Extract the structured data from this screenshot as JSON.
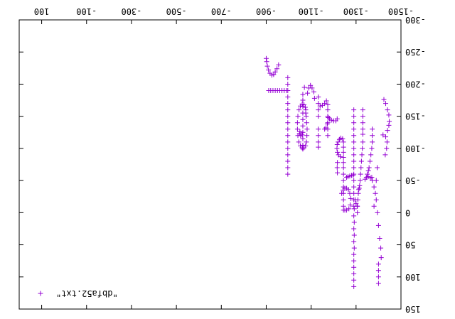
{
  "chart_data": {
    "type": "scatter",
    "title": "",
    "xlabel": "",
    "ylabel": "",
    "xlim": [
      -1500,
      200
    ],
    "ylim": [
      -300,
      150
    ],
    "x_ticks": [
      -1500,
      -1300,
      -1100,
      -900,
      -700,
      -500,
      -300,
      -100,
      100
    ],
    "x_tick_labels": [
      "-1500",
      "-1300",
      "-1100",
      "-900",
      "-700",
      "-500",
      "-300",
      "-100",
      "100"
    ],
    "y_ticks": [
      -300,
      -250,
      -200,
      -150,
      -100,
      -50,
      0,
      50,
      100,
      150
    ],
    "y_tick_labels": [
      "-300",
      "-250",
      "-200",
      "-150",
      "-100",
      "-50",
      "0",
      "50",
      "100",
      "150"
    ],
    "grid": false,
    "legend": "bottom-right",
    "marker": "plus",
    "color": "#9400d3",
    "rendering": "image rotated 180 degrees",
    "series": [
      {
        "name": "\"dbfa52.txt\"",
        "points": [
          [
            -900,
            -240
          ],
          [
            -902,
            -235
          ],
          [
            -905,
            -228
          ],
          [
            -910,
            -222
          ],
          [
            -917,
            -217
          ],
          [
            -925,
            -214
          ],
          [
            -933,
            -215
          ],
          [
            -940,
            -219
          ],
          [
            -948,
            -224
          ],
          [
            -955,
            -230
          ],
          [
            -911,
            -190
          ],
          [
            -920,
            -190
          ],
          [
            -930,
            -190
          ],
          [
            -940,
            -190
          ],
          [
            -950,
            -190
          ],
          [
            -960,
            -190
          ],
          [
            -970,
            -190
          ],
          [
            -980,
            -190
          ],
          [
            -990,
            -190
          ],
          [
            -996,
            -210
          ],
          [
            -996,
            -200
          ],
          [
            -996,
            -190
          ],
          [
            -996,
            -180
          ],
          [
            -996,
            -170
          ],
          [
            -996,
            -160
          ],
          [
            -996,
            -150
          ],
          [
            -996,
            -140
          ],
          [
            -996,
            -130
          ],
          [
            -996,
            -120
          ],
          [
            -996,
            -110
          ],
          [
            -996,
            -100
          ],
          [
            -996,
            -90
          ],
          [
            -996,
            -80
          ],
          [
            -996,
            -70
          ],
          [
            -996,
            -60
          ],
          [
            -1076,
            -160
          ],
          [
            -1078,
            -150
          ],
          [
            -1080,
            -140
          ],
          [
            -1082,
            -130
          ],
          [
            -1081,
            -120
          ],
          [
            -1079,
            -110
          ],
          [
            -1075,
            -104
          ],
          [
            -1068,
            -101
          ],
          [
            -1060,
            -101
          ],
          [
            -1052,
            -104
          ],
          [
            -1045,
            -110
          ],
          [
            -1041,
            -120
          ],
          [
            -1039,
            -130
          ],
          [
            -1039,
            -140
          ],
          [
            -1041,
            -150
          ],
          [
            -1046,
            -160
          ],
          [
            -1052,
            -166
          ],
          [
            -1060,
            -169
          ],
          [
            -1068,
            -168
          ],
          [
            -1074,
            -164
          ],
          [
            -1076,
            -155
          ],
          [
            -1070,
            -195
          ],
          [
            -1063,
            -184
          ],
          [
            -1063,
            -175
          ],
          [
            -1063,
            -165
          ],
          [
            -1063,
            -155
          ],
          [
            -1063,
            -145
          ],
          [
            -1063,
            -135
          ],
          [
            -1063,
            -125
          ],
          [
            -1063,
            -115
          ],
          [
            -1063,
            -105
          ],
          [
            -1063,
            -99
          ],
          [
            -1053,
            -120
          ],
          [
            -1050,
            -126
          ],
          [
            -1048,
            -123
          ],
          [
            -1060,
            -121
          ],
          [
            -1132,
            -130
          ],
          [
            -1132,
            -120
          ],
          [
            -1132,
            -110
          ],
          [
            -1132,
            -102
          ],
          [
            -1132,
            -150
          ],
          [
            -1132,
            -160
          ],
          [
            -1132,
            -170
          ],
          [
            -1132,
            -180
          ],
          [
            -1112,
            -188
          ],
          [
            -1104,
            -194
          ],
          [
            -1097,
            -198
          ],
          [
            -1090,
            -194
          ],
          [
            -1084,
            -186
          ],
          [
            -1115,
            -178
          ],
          [
            -1174,
            -120
          ],
          [
            -1174,
            -130
          ],
          [
            -1174,
            -140
          ],
          [
            -1174,
            -150
          ],
          [
            -1174,
            -160
          ],
          [
            -1174,
            -168
          ],
          [
            -1168,
            -174
          ],
          [
            -1160,
            -170
          ],
          [
            -1150,
            -167
          ],
          [
            -1140,
            -166
          ],
          [
            -1176,
            -148
          ],
          [
            -1182,
            -146
          ],
          [
            -1190,
            -144
          ],
          [
            -1200,
            -143
          ],
          [
            -1210,
            -143
          ],
          [
            -1216,
            -146
          ],
          [
            -1172,
            -138
          ],
          [
            -1166,
            -132
          ],
          [
            -1160,
            -130
          ],
          [
            -1244,
            -70
          ],
          [
            -1244,
            -78
          ],
          [
            -1244,
            -86
          ],
          [
            -1244,
            -94
          ],
          [
            -1244,
            -102
          ],
          [
            -1244,
            -110
          ],
          [
            -1240,
            -115
          ],
          [
            -1232,
            -116
          ],
          [
            -1226,
            -114
          ],
          [
            -1220,
            -110
          ],
          [
            -1216,
            -106
          ],
          [
            -1215,
            -100
          ],
          [
            -1217,
            -94
          ],
          [
            -1222,
            -90
          ],
          [
            -1230,
            -87
          ],
          [
            -1244,
            -60
          ],
          [
            -1244,
            -50
          ],
          [
            -1244,
            -40
          ],
          [
            -1244,
            -30
          ],
          [
            -1244,
            -20
          ],
          [
            -1244,
            -10
          ],
          [
            -1244,
            -4
          ],
          [
            -1217,
            -78
          ],
          [
            -1216,
            -70
          ],
          [
            -1217,
            -62
          ],
          [
            -1236,
            -30
          ],
          [
            -1242,
            -35
          ],
          [
            -1250,
            -38
          ],
          [
            -1258,
            -38
          ],
          [
            -1266,
            -36
          ],
          [
            -1272,
            -30
          ],
          [
            -1276,
            -22
          ],
          [
            -1274,
            -12
          ],
          [
            -1268,
            -6
          ],
          [
            -1258,
            -4
          ],
          [
            -1250,
            -4
          ],
          [
            -1296,
            -20
          ],
          [
            -1300,
            -14
          ],
          [
            -1305,
            -10
          ],
          [
            -1312,
            -36
          ],
          [
            -1316,
            -42
          ],
          [
            -1318,
            -50
          ],
          [
            -1320,
            -60
          ],
          [
            -1322,
            -70
          ],
          [
            -1324,
            -80
          ],
          [
            -1326,
            -90
          ],
          [
            -1328,
            -100
          ],
          [
            -1330,
            -110
          ],
          [
            -1330,
            -122
          ],
          [
            -1330,
            -130
          ],
          [
            -1330,
            -140
          ],
          [
            -1330,
            -150
          ],
          [
            -1330,
            -160
          ],
          [
            -1314,
            -38
          ],
          [
            -1310,
            -30
          ],
          [
            -1308,
            -20
          ],
          [
            -1306,
            -10
          ],
          [
            -1306,
            0
          ],
          [
            -1290,
            -10
          ],
          [
            -1290,
            -20
          ],
          [
            -1290,
            -30
          ],
          [
            -1290,
            -40
          ],
          [
            -1290,
            -50
          ],
          [
            -1290,
            -60
          ],
          [
            -1290,
            -70
          ],
          [
            -1290,
            -80
          ],
          [
            -1290,
            -90
          ],
          [
            -1290,
            -100
          ],
          [
            -1290,
            -110
          ],
          [
            -1290,
            -120
          ],
          [
            -1290,
            -130
          ],
          [
            -1290,
            -140
          ],
          [
            -1290,
            -150
          ],
          [
            -1290,
            -160
          ],
          [
            -1287,
            -58
          ],
          [
            -1280,
            -58
          ],
          [
            -1272,
            -57
          ],
          [
            -1264,
            -56
          ],
          [
            -1258,
            -55
          ],
          [
            -1292,
            -6
          ],
          [
            -1290,
            5
          ],
          [
            -1292,
            15
          ],
          [
            -1290,
            25
          ],
          [
            -1292,
            35
          ],
          [
            -1290,
            45
          ],
          [
            -1292,
            55
          ],
          [
            -1290,
            65
          ],
          [
            -1290,
            75
          ],
          [
            -1290,
            85
          ],
          [
            -1290,
            95
          ],
          [
            -1290,
            105
          ],
          [
            -1290,
            115
          ],
          [
            -1340,
            -52
          ],
          [
            -1346,
            -55
          ],
          [
            -1354,
            -56
          ],
          [
            -1364,
            -54
          ],
          [
            -1372,
            -50
          ],
          [
            -1430,
            -90
          ],
          [
            -1436,
            -100
          ],
          [
            -1438,
            -110
          ],
          [
            -1432,
            -118
          ],
          [
            -1420,
            -121
          ],
          [
            -1440,
            -128
          ],
          [
            -1446,
            -136
          ],
          [
            -1448,
            -142
          ],
          [
            -1446,
            -152
          ],
          [
            -1440,
            -160
          ],
          [
            -1432,
            -170
          ],
          [
            -1424,
            -176
          ],
          [
            -1350,
            -60
          ],
          [
            -1370,
            -55
          ],
          [
            -1380,
            -40
          ],
          [
            -1390,
            -20
          ],
          [
            -1395,
            0
          ],
          [
            -1400,
            20
          ],
          [
            -1405,
            40
          ],
          [
            -1410,
            55
          ],
          [
            -1412,
            70
          ],
          [
            -1355,
            -65
          ],
          [
            -1358,
            -70
          ],
          [
            -1362,
            -80
          ],
          [
            -1366,
            -90
          ],
          [
            -1370,
            -100
          ],
          [
            -1372,
            -110
          ],
          [
            -1372,
            -120
          ],
          [
            -1372,
            -130
          ],
          [
            -1380,
            -10
          ],
          [
            -1386,
            -30
          ],
          [
            -1390,
            -50
          ],
          [
            -1394,
            -70
          ],
          [
            -1400,
            80
          ],
          [
            -1400,
            90
          ],
          [
            -1400,
            100
          ],
          [
            -1400,
            110
          ]
        ]
      }
    ]
  }
}
